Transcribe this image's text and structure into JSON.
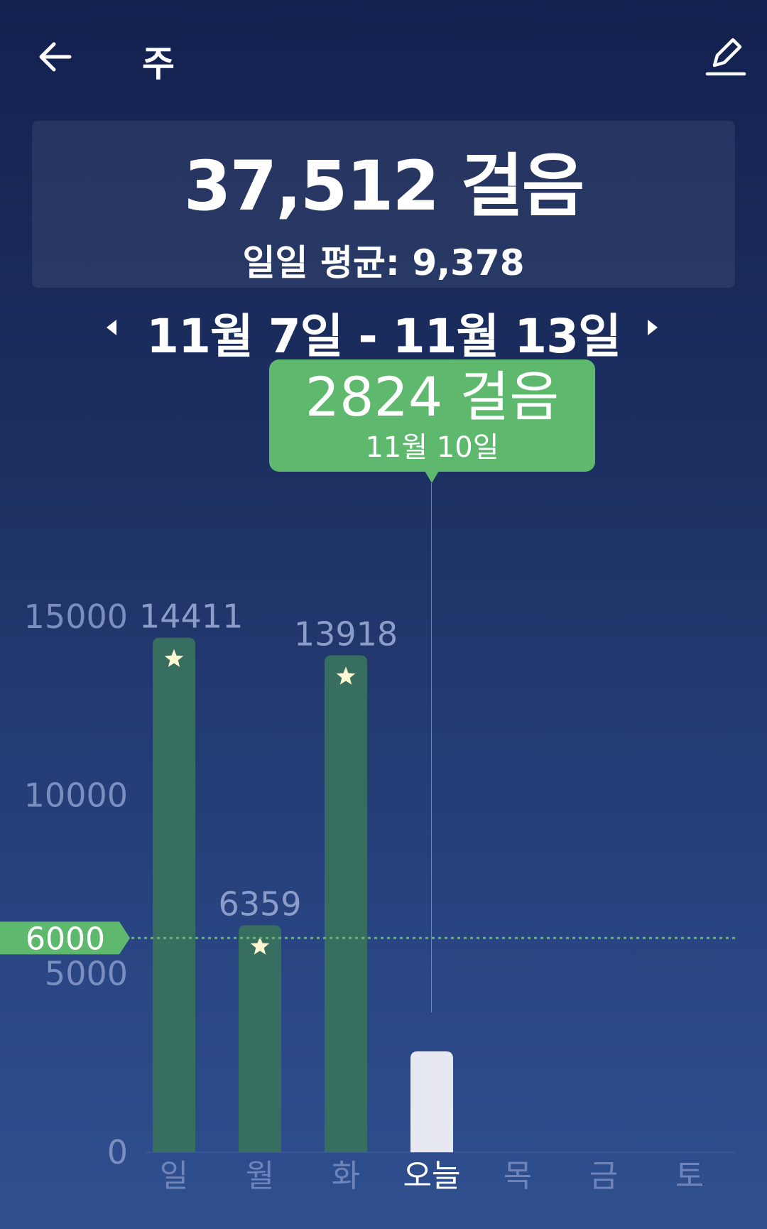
{
  "header": {
    "title": "주",
    "back_icon": "arrow-left-icon",
    "edit_icon": "pencil-icon"
  },
  "summary": {
    "total": "37,512 걸음",
    "daily_average": "일일 평균:  9,378"
  },
  "range": {
    "label": "11월 7일 - 11월 13일",
    "prev_icon": "triangle-left-icon",
    "next_icon": "triangle-right-icon"
  },
  "tooltip": {
    "steps": "2824 걸음",
    "date": "11월 10일"
  },
  "colors": {
    "bar_done": "#376e60",
    "bar_today": "#e8e9f0",
    "goal": "#5eb96f",
    "star": "#fbf7d0"
  },
  "chart_data": {
    "type": "bar",
    "categories": [
      "일",
      "월",
      "화",
      "오늘",
      "목",
      "금",
      "토"
    ],
    "values": [
      14411,
      6359,
      13918,
      2824,
      null,
      null,
      null
    ],
    "value_labels": [
      "14411",
      "6359",
      "13918",
      "",
      "",
      "",
      ""
    ],
    "goal_met": [
      true,
      true,
      true,
      false,
      false,
      false,
      false
    ],
    "goal": 6000,
    "goal_label": "6000",
    "yticks": [
      0,
      5000,
      10000,
      15000
    ],
    "ytick_labels": [
      "0",
      "5000",
      "10000",
      "15000"
    ],
    "ylim": [
      0,
      15000
    ],
    "highlighted": "오늘",
    "grid": false
  }
}
